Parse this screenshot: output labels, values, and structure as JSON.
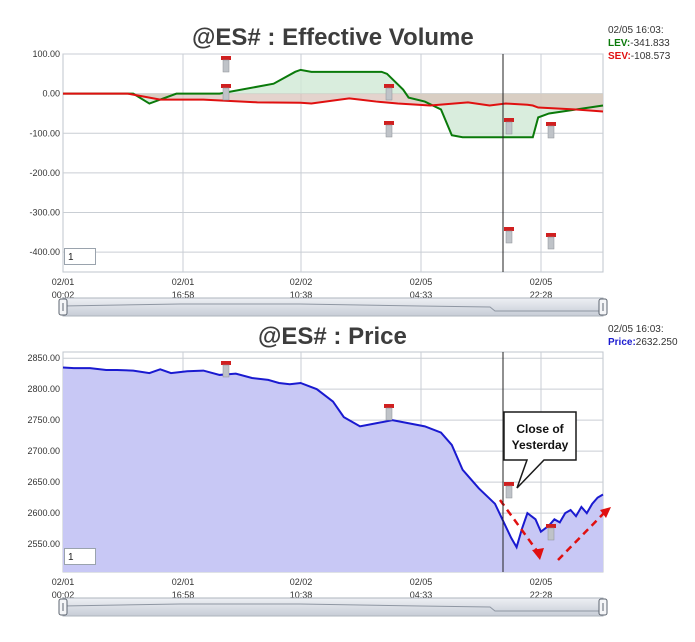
{
  "chart_data": [
    {
      "type": "line",
      "title": "@ES# : Effective Volume",
      "ylim": [
        -450,
        100
      ],
      "y_ticks": [
        "100.00",
        "0.00",
        "-100.00",
        "-200.00",
        "-300.00",
        "-400.00"
      ],
      "x_ticks": [
        {
          "date": "02/01",
          "time": "00:02"
        },
        {
          "date": "02/01",
          "time": "16:58"
        },
        {
          "date": "02/02",
          "time": "10:38"
        },
        {
          "date": "02/05",
          "time": "04:33"
        },
        {
          "date": "02/05",
          "time": "22:28"
        }
      ],
      "grid": true,
      "interval_box": "1",
      "readout": {
        "timestamp": "02/05 16:03:",
        "lev_label": "LEV:",
        "lev_value": "-341.833",
        "sev_label": "SEV:",
        "sev_value": "-108.573"
      },
      "colors": {
        "lev": "#0a7a0a",
        "sev": "#e01010"
      },
      "series": [
        {
          "name": "LEV",
          "x": [
            0,
            0.08,
            0.13,
            0.16,
            0.21,
            0.29,
            0.39,
            0.43,
            0.44,
            0.46,
            0.55,
            0.59,
            0.6,
            0.63,
            0.64,
            0.67,
            0.7,
            0.72,
            0.74,
            0.76,
            0.78,
            0.8,
            0.82,
            0.84,
            0.87,
            0.88,
            0.9,
            1.0
          ],
          "values": [
            0,
            0,
            0,
            -25,
            0,
            0,
            25,
            55,
            60,
            55,
            55,
            55,
            50,
            10,
            -10,
            -20,
            -40,
            -105,
            -110,
            -110,
            -110,
            -110,
            -110,
            -110,
            -110,
            -60,
            -50,
            -30
          ]
        },
        {
          "name": "SEV",
          "x": [
            0,
            0.12,
            0.14,
            0.16,
            0.18,
            0.26,
            0.36,
            0.44,
            0.46,
            0.53,
            0.55,
            0.58,
            0.62,
            0.68,
            0.75,
            0.79,
            0.82,
            0.86,
            0.87,
            0.88,
            0.95,
            1.0
          ],
          "values": [
            0,
            0,
            -5,
            -10,
            -15,
            -15,
            -22,
            -23,
            -25,
            -12,
            -15,
            -20,
            -25,
            -30,
            -22,
            -30,
            -25,
            -28,
            -30,
            -35,
            -40,
            -45
          ]
        }
      ],
      "annotations": [
        {
          "x": 0.3,
          "y": 90,
          "style": "shaded"
        }
      ]
    },
    {
      "type": "area",
      "title": "@ES# : Price",
      "ylim": [
        2505,
        2860
      ],
      "y_ticks": [
        "2850.00",
        "2800.00",
        "2750.00",
        "2700.00",
        "2650.00",
        "2600.00",
        "2550.00"
      ],
      "x_ticks": [
        {
          "date": "02/01",
          "time": "00:02"
        },
        {
          "date": "02/01",
          "time": "16:58"
        },
        {
          "date": "02/02",
          "time": "10:38"
        },
        {
          "date": "02/05",
          "time": "04:33"
        },
        {
          "date": "02/05",
          "time": "22:28"
        }
      ],
      "grid": true,
      "interval_box": "1",
      "readout": {
        "timestamp": "02/05 16:03:",
        "price_label": "Price:",
        "price_value": "2632.250"
      },
      "colors": {
        "price": "#1a1ad0",
        "fill": "#c8c8f5"
      },
      "series": [
        {
          "name": "Price",
          "x": [
            0,
            0.02,
            0.05,
            0.08,
            0.1,
            0.13,
            0.16,
            0.18,
            0.2,
            0.23,
            0.26,
            0.29,
            0.32,
            0.35,
            0.38,
            0.4,
            0.42,
            0.44,
            0.47,
            0.5,
            0.52,
            0.55,
            0.58,
            0.61,
            0.64,
            0.67,
            0.7,
            0.72,
            0.74,
            0.75,
            0.77,
            0.8,
            0.83,
            0.84,
            0.85,
            0.86,
            0.875,
            0.885,
            0.9,
            0.91,
            0.92,
            0.93,
            0.94,
            0.95,
            0.96,
            0.97,
            0.98,
            0.99,
            1.0
          ],
          "values": [
            2835,
            2834,
            2834,
            2831,
            2831,
            2830,
            2826,
            2832,
            2826,
            2829,
            2830,
            2823,
            2825,
            2818,
            2815,
            2810,
            2808,
            2810,
            2800,
            2780,
            2755,
            2740,
            2745,
            2750,
            2745,
            2740,
            2730,
            2710,
            2670,
            2660,
            2640,
            2615,
            2560,
            2545,
            2575,
            2600,
            2590,
            2570,
            2580,
            2590,
            2585,
            2600,
            2605,
            2595,
            2610,
            2600,
            2615,
            2625,
            2630
          ]
        }
      ],
      "annotation_text": {
        "line1": "Close of",
        "line2": "Yesterday"
      }
    }
  ]
}
